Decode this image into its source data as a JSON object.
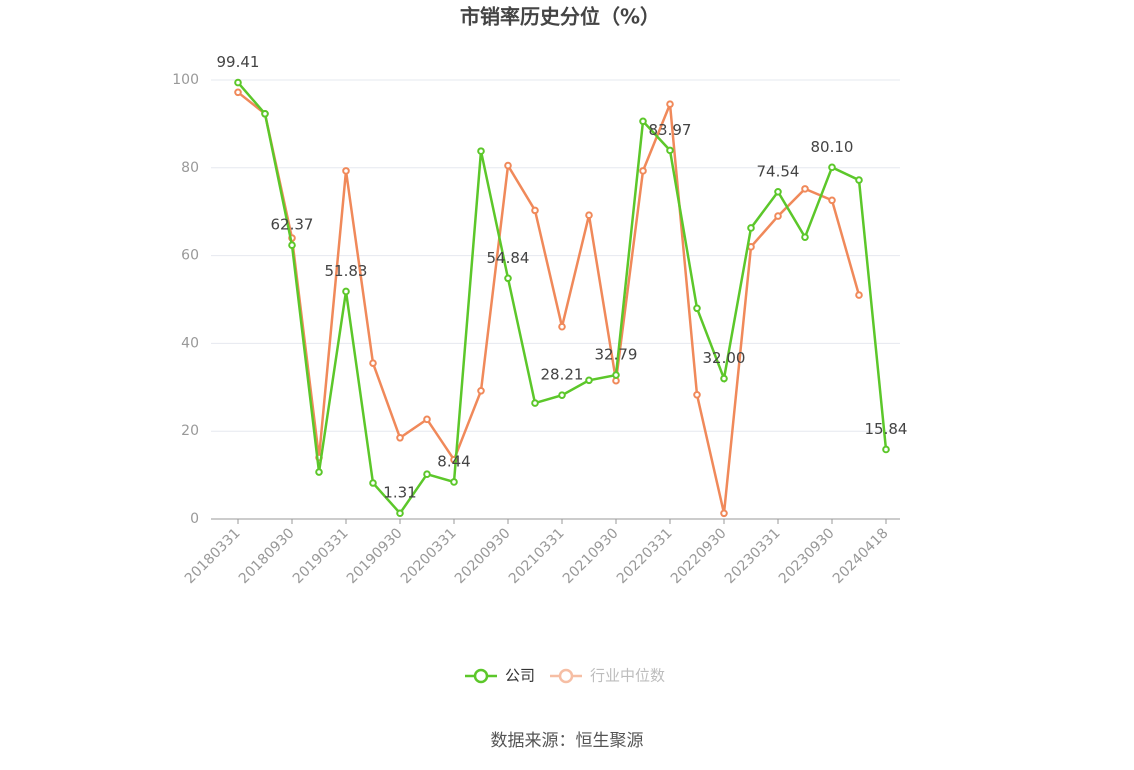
{
  "chart_data": {
    "type": "line",
    "title": "市销率历史分位（%）",
    "categories": [
      "20180331",
      null,
      "20180930",
      null,
      "20190331",
      null,
      "20190930",
      null,
      "20200331",
      null,
      "20200930",
      null,
      "20210331",
      null,
      "20210930",
      null,
      "20220331",
      null,
      "20220930",
      null,
      "20230331",
      null,
      "20230930",
      null,
      "20240418"
    ],
    "series": [
      {
        "name": "公司",
        "color": "#5cc72a",
        "values": [
          99.41,
          92.3,
          62.37,
          10.7,
          51.83,
          8.2,
          1.31,
          10.2,
          8.44,
          83.8,
          54.84,
          26.4,
          28.21,
          31.6,
          32.79,
          90.6,
          83.97,
          48,
          32.0,
          66.3,
          74.54,
          64.2,
          80.1,
          77.2,
          15.84
        ],
        "value_labels": [
          "99.41",
          null,
          "62.37",
          null,
          "51.83",
          null,
          "1.31",
          null,
          "8.44",
          null,
          "54.84",
          null,
          "28.21",
          null,
          "32.79",
          null,
          "83.97",
          null,
          "32.00",
          null,
          "74.54",
          null,
          "80.10",
          null,
          "15.84"
        ]
      },
      {
        "name": "行业中位数",
        "color": "#f0895a",
        "values": [
          97.2,
          92.3,
          64,
          14,
          79.3,
          35.5,
          18.5,
          22.7,
          13.5,
          29.2,
          80.5,
          70.3,
          43.8,
          69.2,
          31.5,
          79.3,
          94.5,
          28.3,
          1.3,
          62,
          69,
          75.2,
          72.6,
          51,
          null
        ]
      }
    ],
    "ylim": [
      0,
      100
    ],
    "yticks": [
      0,
      20,
      40,
      60,
      80,
      100
    ],
    "grid": true,
    "legend": "bottom",
    "source": "数据来源：恒生聚源"
  }
}
